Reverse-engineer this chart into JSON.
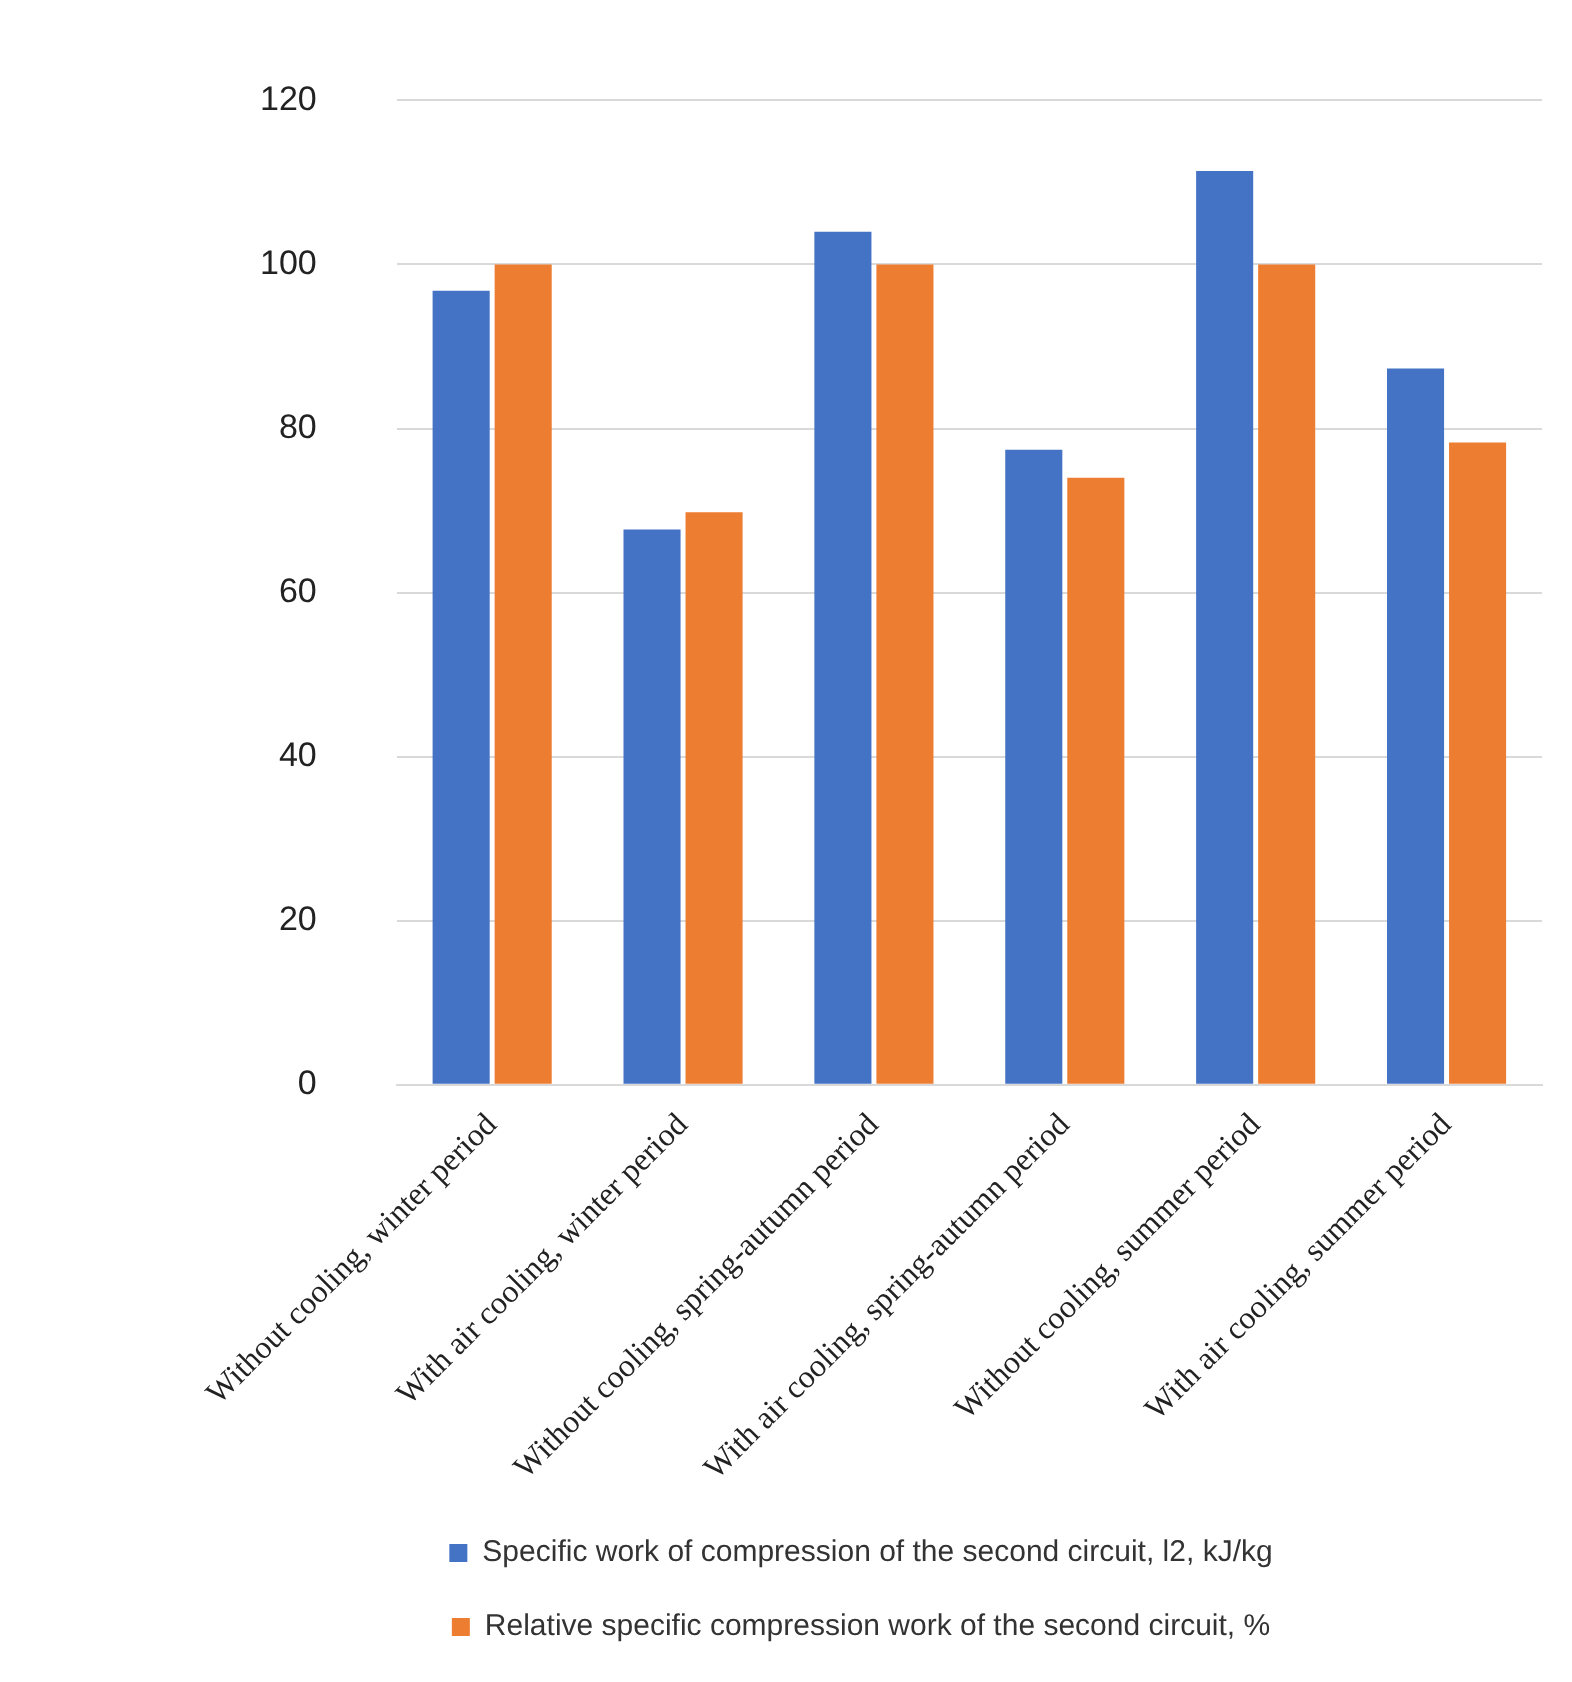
{
  "chart_data": {
    "type": "bar",
    "categories": [
      "Without cooling, winter period",
      "With air cooling, winter period",
      "Without cooling, spring-autumn period",
      "With air cooling, spring-autumn period",
      "Without cooling, summer period",
      "With air cooling, summer period"
    ],
    "series": [
      {
        "name": "Specific work of compression of the second circuit, l2, kJ/kg",
        "color": "#4472c4",
        "values": [
          96.8,
          67.7,
          104,
          77.4,
          111.4,
          87.3
        ]
      },
      {
        "name": "Relative specific compression work of the second circuit, %",
        "color": "#ed7d31",
        "values": [
          100,
          69.8,
          100,
          74,
          100,
          78.3
        ]
      }
    ],
    "ylim": [
      0,
      120
    ],
    "yticks": [
      0,
      20,
      40,
      60,
      80,
      100,
      120
    ],
    "grid": "y",
    "legend": "bottom"
  }
}
